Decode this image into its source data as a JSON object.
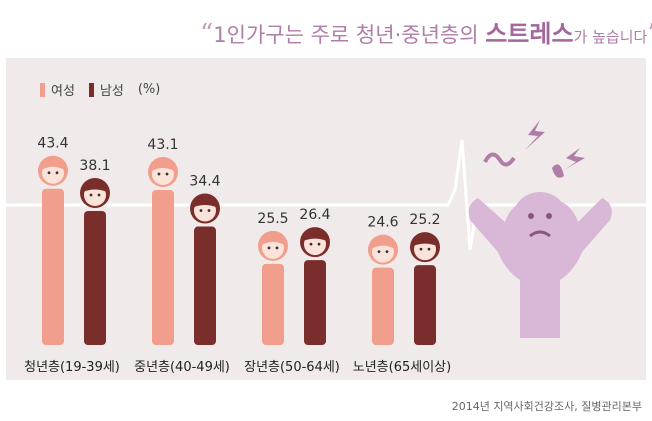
{
  "header": {
    "open_quote": "“",
    "part1": "1인가구는 주로 청년·중년층의 ",
    "emphasis": "스트레스",
    "part2": "가 높습니다",
    "close_quote": "”"
  },
  "legend": {
    "female": "여성",
    "male": "남성",
    "unit": "(%)"
  },
  "source": "2014년 지역사회건강조사, 질병관리본부",
  "colors": {
    "female": "#f29e8c",
    "male": "#7a2e2b",
    "figure": "#d9b7d6",
    "panel": "#f0ebea",
    "title": "#b07da8"
  },
  "chart_data": {
    "type": "bar",
    "categories": [
      "청년층(19-39세)",
      "중년층(40-49세)",
      "장년층(50-64세)",
      "노년층(65세이상)"
    ],
    "series": [
      {
        "name": "여성",
        "values": [
          43.4,
          43.1,
          25.5,
          24.6
        ]
      },
      {
        "name": "남성",
        "values": [
          38.1,
          34.4,
          26.4,
          25.2
        ]
      }
    ],
    "ylabel": "(%)",
    "grid": false,
    "legend": "top-left"
  }
}
